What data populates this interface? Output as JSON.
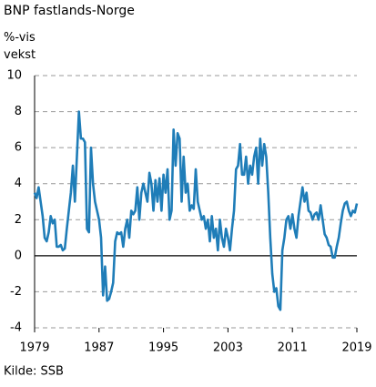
{
  "chart_data": {
    "type": "line",
    "title": "BNP fastlands-Norge",
    "y_label": "%-vis vekst",
    "source": "Kilde: SSB",
    "x": [
      1979,
      1979.25,
      1979.5,
      1979.75,
      1980,
      1980.25,
      1980.5,
      1980.75,
      1981,
      1981.25,
      1981.5,
      1981.75,
      1982,
      1982.25,
      1982.5,
      1982.75,
      1983,
      1983.25,
      1983.5,
      1983.75,
      1984,
      1984.25,
      1984.5,
      1984.75,
      1985,
      1985.25,
      1985.5,
      1985.75,
      1986,
      1986.25,
      1986.5,
      1986.75,
      1987,
      1987.25,
      1987.5,
      1987.75,
      1988,
      1988.25,
      1988.5,
      1988.75,
      1989,
      1989.25,
      1989.5,
      1989.75,
      1990,
      1990.25,
      1990.5,
      1990.75,
      1991,
      1991.25,
      1991.5,
      1991.75,
      1992,
      1992.25,
      1992.5,
      1992.75,
      1993,
      1993.25,
      1993.5,
      1993.75,
      1994,
      1994.25,
      1994.5,
      1994.75,
      1995,
      1995.25,
      1995.5,
      1995.75,
      1996,
      1996.25,
      1996.5,
      1996.75,
      1997,
      1997.25,
      1997.5,
      1997.75,
      1998,
      1998.25,
      1998.5,
      1998.75,
      1999,
      1999.25,
      1999.5,
      1999.75,
      2000,
      2000.25,
      2000.5,
      2000.75,
      2001,
      2001.25,
      2001.5,
      2001.75,
      2002,
      2002.25,
      2002.5,
      2002.75,
      2003,
      2003.25,
      2003.5,
      2003.75,
      2004,
      2004.25,
      2004.5,
      2004.75,
      2005,
      2005.25,
      2005.5,
      2005.75,
      2006,
      2006.25,
      2006.5,
      2006.75,
      2007,
      2007.25,
      2007.5,
      2007.75,
      2008,
      2008.25,
      2008.5,
      2008.75,
      2009,
      2009.25,
      2009.5,
      2009.75,
      2010,
      2010.25,
      2010.5,
      2010.75,
      2011,
      2011.25,
      2011.5,
      2011.75,
      2012,
      2012.25,
      2012.5,
      2012.75,
      2013,
      2013.25,
      2013.5,
      2013.75,
      2014,
      2014.25,
      2014.5,
      2014.75,
      2015,
      2015.25,
      2015.5,
      2015.75,
      2016,
      2016.25,
      2016.5,
      2016.75,
      2017,
      2017.25,
      2017.5,
      2017.75,
      2018,
      2018.25,
      2018.5,
      2018.75,
      2019
    ],
    "series": [
      {
        "name": "BNP fastlands-Norge",
        "color": "#1f7db8",
        "values": [
          3.5,
          3.2,
          3.8,
          3.0,
          2.2,
          1.0,
          0.8,
          1.3,
          2.2,
          1.8,
          2.0,
          0.5,
          0.5,
          0.6,
          0.3,
          0.4,
          1.5,
          2.5,
          3.5,
          5.0,
          3.0,
          5.5,
          8.0,
          6.5,
          6.5,
          6.3,
          1.5,
          1.3,
          6.0,
          4.0,
          3.0,
          2.5,
          2.0,
          1.0,
          -2.2,
          -0.6,
          -2.5,
          -2.4,
          -2.0,
          -1.5,
          0.8,
          1.3,
          1.2,
          1.3,
          0.5,
          1.5,
          2.0,
          1.0,
          2.5,
          2.3,
          2.5,
          3.8,
          2.0,
          3.5,
          4.0,
          3.5,
          3.0,
          4.6,
          4.0,
          2.5,
          4.2,
          3.0,
          4.3,
          2.5,
          4.5,
          3.5,
          4.8,
          2.0,
          2.5,
          7.0,
          5.0,
          6.8,
          6.5,
          3.0,
          5.5,
          3.5,
          4.0,
          2.5,
          2.8,
          2.6,
          4.8,
          3.0,
          2.5,
          2.0,
          2.2,
          1.5,
          2.0,
          0.8,
          2.2,
          1.0,
          1.5,
          0.3,
          2.0,
          1.0,
          0.5,
          1.5,
          1.0,
          0.3,
          1.5,
          2.5,
          4.8,
          5.0,
          6.2,
          4.5,
          4.5,
          5.5,
          4.0,
          5.0,
          4.5,
          5.5,
          6.0,
          4.0,
          6.5,
          5.0,
          6.2,
          5.5,
          3.5,
          1.0,
          -1.0,
          -2.0,
          -1.8,
          -2.8,
          -3.0,
          0.3,
          1.0,
          2.0,
          2.2,
          1.5,
          2.3,
          1.5,
          1.0,
          2.2,
          3.0,
          3.8,
          3.0,
          3.5,
          2.5,
          2.4,
          2.0,
          2.3,
          2.4,
          2.0,
          2.8,
          2.0,
          1.2,
          1.0,
          0.6,
          0.5,
          -0.1,
          -0.1,
          0.5,
          1.0,
          1.8,
          2.5,
          2.9,
          3.0,
          2.5,
          2.2,
          2.5,
          2.4,
          2.9
        ]
      }
    ],
    "xlim": [
      1979,
      2019
    ],
    "xticks": [
      1979,
      1987,
      1995,
      2003,
      2011,
      2019
    ],
    "ylim": [
      -4,
      10
    ],
    "yticks": [
      -4,
      -2,
      0,
      2,
      4,
      6,
      8,
      10
    ],
    "grid": true
  }
}
